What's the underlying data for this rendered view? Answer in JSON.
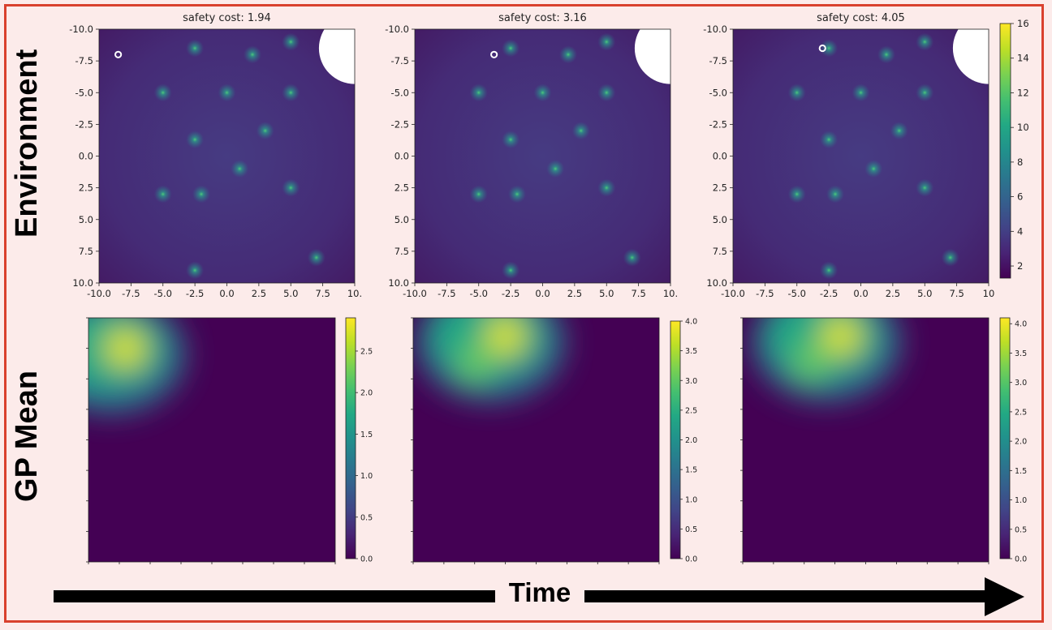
{
  "row_labels": {
    "top": "Environment",
    "bottom": "GP Mean"
  },
  "time_label": "Time",
  "chart_data": [
    {
      "type": "heatmap",
      "title": "safety cost: 1.94",
      "panel": "environment",
      "xlim": [
        -10,
        10
      ],
      "ylim": [
        -10,
        10
      ],
      "x_tick_labels": [
        "-10.0",
        "-7.5",
        "-5.0",
        "-2.5",
        "0.0",
        "2.5",
        "5.0",
        "7.5",
        "10."
      ],
      "y_tick_labels": [
        "-10.0",
        "-7.5",
        "-5.0",
        "-2.5",
        "0.0",
        "2.5",
        "5.0",
        "7.5",
        "10.0"
      ],
      "agent_position": [
        -8.5,
        -8.0
      ]
    },
    {
      "type": "heatmap",
      "title": "safety cost: 3.16",
      "panel": "environment",
      "xlim": [
        -10,
        10
      ],
      "ylim": [
        -10,
        10
      ],
      "x_tick_labels": [
        "-10.0",
        "-7.5",
        "-5.0",
        "-2.5",
        "0.0",
        "2.5",
        "5.0",
        "7.5",
        "10."
      ],
      "y_tick_labels": [
        "-10.0",
        "-7.5",
        "-5.0",
        "-2.5",
        "0.0",
        "2.5",
        "5.0",
        "7.5",
        "10.0"
      ],
      "agent_position": [
        -3.8,
        -8.0
      ]
    },
    {
      "type": "heatmap",
      "title": "safety cost: 4.05",
      "panel": "environment",
      "xlim": [
        -10,
        10
      ],
      "ylim": [
        -10,
        10
      ],
      "x_tick_labels": [
        "-10.0",
        "-7.5",
        "-5.0",
        "-2.5",
        "0.0",
        "2.5",
        "5.0",
        "7.5",
        "10"
      ],
      "y_tick_labels": [
        "-10.0",
        "-7.5",
        "-5.0",
        "-2.5",
        "0.0",
        "2.5",
        "5.0",
        "7.5",
        "10.0"
      ],
      "agent_position": [
        -3.0,
        -8.5
      ],
      "colorbar": {
        "range": [
          1.3,
          16
        ],
        "ticks": [
          "2",
          "4",
          "6",
          "8",
          "10",
          "12",
          "14",
          "16"
        ]
      }
    },
    {
      "type": "heatmap",
      "panel": "gp_mean",
      "peaks": [
        {
          "x": -7.0,
          "y": -7.5,
          "value": 2.9
        }
      ],
      "colorbar": {
        "range": [
          0,
          2.9
        ],
        "ticks": [
          "0.0",
          "0.5",
          "1.0",
          "1.5",
          "2.0",
          "2.5"
        ]
      }
    },
    {
      "type": "heatmap",
      "panel": "gp_mean",
      "peaks": [
        {
          "x": -2.5,
          "y": -8.5,
          "value": 4.0
        },
        {
          "x": -5.0,
          "y": -6.2,
          "value": 3.2
        }
      ],
      "colorbar": {
        "range": [
          0,
          4.0
        ],
        "ticks": [
          "0.0",
          "0.5",
          "1.0",
          "1.5",
          "2.0",
          "2.5",
          "3.0",
          "3.5",
          "4.0"
        ]
      }
    },
    {
      "type": "heatmap",
      "panel": "gp_mean",
      "peaks": [
        {
          "x": -2.0,
          "y": -8.5,
          "value": 4.1
        },
        {
          "x": -4.5,
          "y": -6.3,
          "value": 3.3
        }
      ],
      "colorbar": {
        "range": [
          0,
          4.1
        ],
        "ticks": [
          "0.0",
          "0.5",
          "1.0",
          "1.5",
          "2.0",
          "2.5",
          "3.0",
          "3.5",
          "4.0"
        ]
      }
    }
  ],
  "hazards": [
    [
      -2.5,
      -8.5
    ],
    [
      2.0,
      -8.0
    ],
    [
      5.0,
      -9.0
    ],
    [
      -5.0,
      -5.0
    ],
    [
      0.0,
      -5.0
    ],
    [
      5.0,
      -5.0
    ],
    [
      -2.5,
      -1.3
    ],
    [
      3.0,
      -2.0
    ],
    [
      1.0,
      1.0
    ],
    [
      -5.0,
      3.0
    ],
    [
      -2.0,
      3.0
    ],
    [
      5.0,
      2.5
    ],
    [
      -2.5,
      9.0
    ],
    [
      7.0,
      8.0
    ]
  ],
  "goal": {
    "x": 10.0,
    "y": -8.5,
    "r": 2.8
  }
}
